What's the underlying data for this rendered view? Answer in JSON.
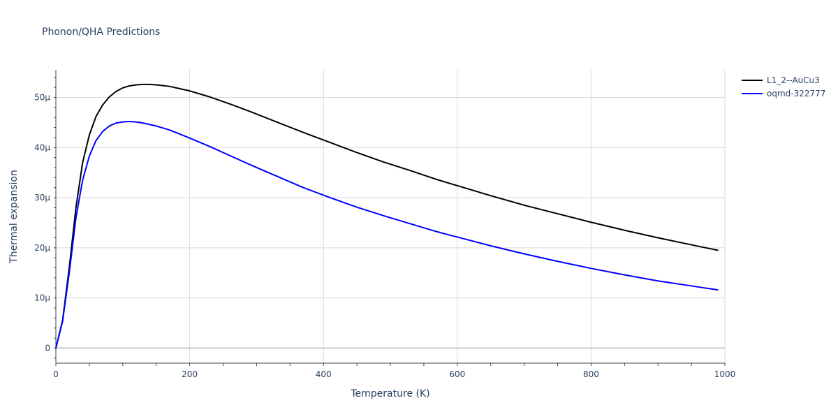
{
  "chart_data": {
    "type": "line",
    "title": "Phonon/QHA Predictions",
    "xlabel": "Temperature (K)",
    "ylabel": "Thermal expansion",
    "xlim": [
      0,
      1000
    ],
    "ylim": [
      -3e-06,
      5.55e-05
    ],
    "x_ticks": [
      0,
      200,
      400,
      600,
      800,
      1000
    ],
    "x_tick_labels": [
      "0",
      "200",
      "400",
      "600",
      "800",
      "1000"
    ],
    "y_ticks": [
      0,
      1e-05,
      2e-05,
      3e-05,
      4e-05,
      5e-05
    ],
    "y_tick_labels": [
      "0",
      "10µ",
      "20µ",
      "30µ",
      "40µ",
      "50µ"
    ],
    "grid": true,
    "legend_position": "top-right",
    "series": [
      {
        "name": "L1_2--AuCu3",
        "color": "#000000",
        "x": [
          0,
          10,
          20,
          30,
          40,
          50,
          60,
          70,
          80,
          90,
          100,
          110,
          120,
          130,
          140,
          150,
          170,
          200,
          230,
          260,
          290,
          330,
          370,
          410,
          450,
          490,
          530,
          570,
          610,
          650,
          700,
          750,
          800,
          850,
          900,
          950,
          990
        ],
        "y": [
          0,
          5.5e-06,
          1.6e-05,
          2.8e-05,
          3.7e-05,
          4.25e-05,
          4.62e-05,
          4.85e-05,
          5.01e-05,
          5.12e-05,
          5.19e-05,
          5.23e-05,
          5.25e-05,
          5.26e-05,
          5.26e-05,
          5.25e-05,
          5.22e-05,
          5.13e-05,
          5.01e-05,
          4.87e-05,
          4.72e-05,
          4.51e-05,
          4.3e-05,
          4.1e-05,
          3.9e-05,
          3.71e-05,
          3.54e-05,
          3.36e-05,
          3.2e-05,
          3.04e-05,
          2.85e-05,
          2.68e-05,
          2.51e-05,
          2.35e-05,
          2.2e-05,
          2.06e-05,
          1.95e-05
        ]
      },
      {
        "name": "oqmd-322777",
        "color": "#0000ff",
        "x": [
          0,
          10,
          20,
          30,
          40,
          50,
          60,
          70,
          80,
          90,
          100,
          110,
          120,
          130,
          140,
          150,
          170,
          200,
          230,
          260,
          290,
          330,
          370,
          410,
          450,
          490,
          530,
          570,
          610,
          650,
          700,
          750,
          800,
          850,
          900,
          950,
          990
        ],
        "y": [
          0,
          5.3e-06,
          1.5e-05,
          2.6e-05,
          3.35e-05,
          3.83e-05,
          4.14e-05,
          4.32e-05,
          4.43e-05,
          4.49e-05,
          4.51e-05,
          4.52e-05,
          4.51e-05,
          4.49e-05,
          4.46e-05,
          4.43e-05,
          4.35e-05,
          4.19e-05,
          4.02e-05,
          3.84e-05,
          3.66e-05,
          3.43e-05,
          3.2e-05,
          3e-05,
          2.81e-05,
          2.64e-05,
          2.48e-05,
          2.32e-05,
          2.18e-05,
          2.04e-05,
          1.88e-05,
          1.73e-05,
          1.59e-05,
          1.46e-05,
          1.34e-05,
          1.24e-05,
          1.16e-05
        ]
      }
    ]
  }
}
